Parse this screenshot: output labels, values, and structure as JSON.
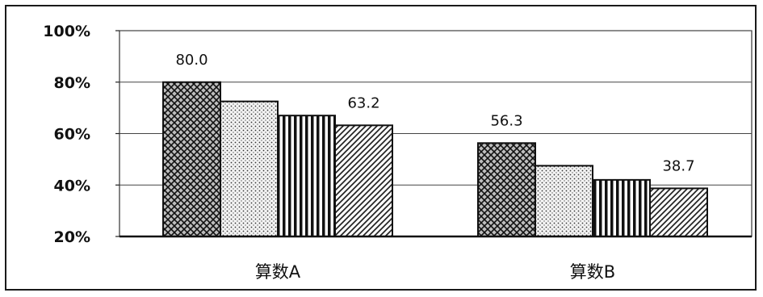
{
  "chart_data": {
    "type": "bar",
    "categories": [
      "算数A",
      "算数B"
    ],
    "series": [
      {
        "values": [
          80.0,
          56.3
        ],
        "pattern": "crosshatch"
      },
      {
        "values": [
          72.5,
          47.5
        ],
        "pattern": "dots"
      },
      {
        "values": [
          67.0,
          42.0
        ],
        "pattern": "vertical-lines"
      },
      {
        "values": [
          63.2,
          38.7
        ],
        "pattern": "diagonal-lines"
      }
    ],
    "ylim": [
      20,
      100
    ],
    "yticks": [
      20,
      40,
      60,
      80,
      100
    ],
    "ytick_labels": [
      "20%",
      "40%",
      "60%",
      "80%",
      "100%"
    ],
    "data_labels": [
      {
        "category": 0,
        "series": 0,
        "text": "80.0"
      },
      {
        "category": 0,
        "series": 3,
        "text": "63.2"
      },
      {
        "category": 1,
        "series": 0,
        "text": "56.3"
      },
      {
        "category": 1,
        "series": 3,
        "text": "38.7"
      }
    ],
    "grid": true,
    "title": "",
    "xlabel": "",
    "ylabel": ""
  }
}
